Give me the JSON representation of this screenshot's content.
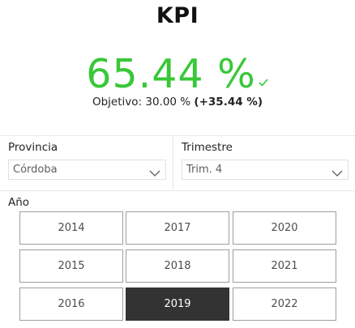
{
  "kpi": {
    "title": "KPI",
    "value": "65.44 %",
    "goal_prefix": "Objetivo: 30.00 % ",
    "goal_delta": "(+35.44 %)",
    "value_color": "#37c837",
    "status_icon": "checkmark-icon"
  },
  "filters": {
    "provincia": {
      "label": "Provincia",
      "selected": "Córdoba"
    },
    "trimestre": {
      "label": "Trimestre",
      "selected": "Trim. 4"
    }
  },
  "year_slicer": {
    "label": "Año",
    "years": [
      "2014",
      "2017",
      "2020",
      "2015",
      "2018",
      "2021",
      "2016",
      "2019",
      "2022"
    ],
    "selected": "2019",
    "selected_color": "#333333"
  }
}
